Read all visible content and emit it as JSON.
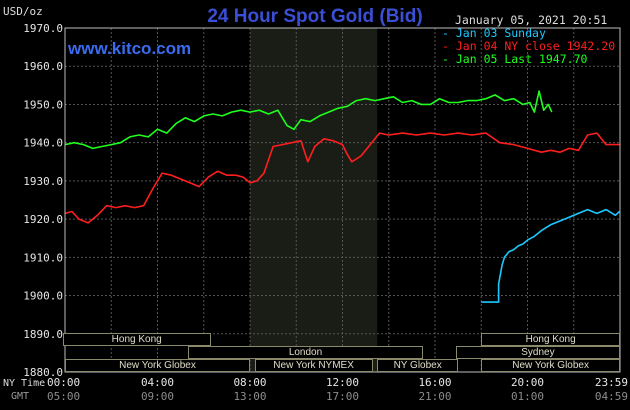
{
  "header": {
    "title": "24 Hour Spot Gold (Bid)",
    "units": "USD/oz",
    "datetime": "January 05, 2021 20:51",
    "website": "www.kitco.com"
  },
  "legend": [
    {
      "label": "Jan 03 Sunday",
      "color": "#1ec8ff"
    },
    {
      "label": "Jan 04 NY close 1942.20",
      "color": "#ff1e1e"
    },
    {
      "label": "Jan 05 Last 1947.70",
      "color": "#1eff1e"
    }
  ],
  "timezones": {
    "ny_label": "NY Time",
    "gmt_label": "GMT"
  },
  "markets": [
    {
      "name": "Hong Kong",
      "start": -0.1,
      "end": 6.3
    },
    {
      "name": "London",
      "start": 5.3,
      "end": 15.5
    },
    {
      "name": "New York Globex",
      "start": 0.0,
      "end": 8.0
    },
    {
      "name": "New York NYMEX",
      "start": 8.2,
      "end": 13.3
    },
    {
      "name": "NY Globex",
      "start": 13.5,
      "end": 17.0
    },
    {
      "name": "Hong Kong",
      "start": 18.0,
      "end": 24.0
    },
    {
      "name": "Sydney",
      "start": 16.9,
      "end": 24.0
    },
    {
      "name": "New York Globex",
      "start": 18.0,
      "end": 24.0
    }
  ],
  "chart_data": {
    "type": "line",
    "title": "24 Hour Spot Gold (Bid)",
    "ylabel": "USD/oz",
    "xlim": [
      0,
      24
    ],
    "ylim": [
      1880,
      1970
    ],
    "grid": true,
    "legend_position": "top-right",
    "shaded_region": [
      8.0,
      13.5
    ],
    "y_ticks": [
      "1880.0",
      "1890.0",
      "1900.0",
      "1910.0",
      "1920.0",
      "1930.0",
      "1940.0",
      "1950.0",
      "1960.0",
      "1970.0"
    ],
    "x_ticks_ny": [
      "00:00",
      "04:00",
      "08:00",
      "12:00",
      "16:00",
      "20:00",
      "23:59"
    ],
    "x_ticks_gmt": [
      "05:00",
      "09:00",
      "13:00",
      "17:00",
      "21:00",
      "01:00",
      "04:59"
    ],
    "series": [
      {
        "name": "Jan 03 Sunday",
        "color": "#1ec8ff",
        "x": [
          18.0,
          18.75,
          18.75,
          18.9,
          19.0,
          19.2,
          19.4,
          19.6,
          19.8,
          20.0,
          20.3,
          20.6,
          21.0,
          21.4,
          21.8,
          22.2,
          22.6,
          23.0,
          23.4,
          23.8,
          23.98
        ],
        "y": [
          1898.3,
          1898.3,
          1903.0,
          1908.0,
          1910.0,
          1911.5,
          1912.0,
          1913.0,
          1913.5,
          1914.5,
          1915.5,
          1917.0,
          1918.5,
          1919.5,
          1920.5,
          1921.5,
          1922.5,
          1921.5,
          1922.5,
          1921.0,
          1922.0
        ]
      },
      {
        "name": "Jan 04 NY close",
        "color": "#ff1e1e",
        "x": [
          0.0,
          0.3,
          0.6,
          1.0,
          1.4,
          1.8,
          2.2,
          2.6,
          3.0,
          3.4,
          3.8,
          4.2,
          4.6,
          5.0,
          5.4,
          5.8,
          6.2,
          6.6,
          7.0,
          7.4,
          7.7,
          8.0,
          8.3,
          8.6,
          9.0,
          9.4,
          9.8,
          10.2,
          10.5,
          10.8,
          11.2,
          11.6,
          12.0,
          12.2,
          12.4,
          12.8,
          13.2,
          13.6,
          14.0,
          14.6,
          15.2,
          15.8,
          16.4,
          17.0,
          17.6,
          18.2,
          18.8,
          19.4,
          20.0,
          20.6,
          21.0,
          21.4,
          21.8,
          22.2,
          22.6,
          23.0,
          23.4,
          23.98
        ],
        "y": [
          1921.5,
          1922.0,
          1920.0,
          1919.0,
          1921.0,
          1923.5,
          1923.0,
          1923.5,
          1923.0,
          1923.5,
          1928.0,
          1932.0,
          1931.5,
          1930.5,
          1929.5,
          1928.5,
          1931.0,
          1932.5,
          1931.5,
          1931.5,
          1931.0,
          1929.5,
          1930.0,
          1932.0,
          1939.0,
          1939.5,
          1940.0,
          1940.5,
          1935.0,
          1939.0,
          1941.0,
          1940.5,
          1939.5,
          1937.0,
          1935.0,
          1936.5,
          1939.5,
          1942.5,
          1942.0,
          1942.5,
          1942.0,
          1942.5,
          1942.0,
          1942.5,
          1942.0,
          1942.5,
          1940.0,
          1939.5,
          1938.5,
          1937.5,
          1938.0,
          1937.5,
          1938.5,
          1938.0,
          1942.0,
          1942.5,
          1939.5,
          1939.5
        ]
      },
      {
        "name": "Jan 05 Last",
        "color": "#1eff1e",
        "x": [
          0.0,
          0.4,
          0.8,
          1.2,
          1.6,
          2.0,
          2.4,
          2.8,
          3.2,
          3.6,
          4.0,
          4.4,
          4.8,
          5.2,
          5.6,
          6.0,
          6.4,
          6.8,
          7.2,
          7.6,
          8.0,
          8.4,
          8.8,
          9.2,
          9.6,
          9.9,
          10.2,
          10.6,
          11.0,
          11.4,
          11.8,
          12.2,
          12.6,
          13.0,
          13.4,
          13.8,
          14.2,
          14.6,
          15.0,
          15.4,
          15.8,
          16.2,
          16.6,
          17.0,
          17.4,
          17.8,
          18.2,
          18.6,
          19.0,
          19.4,
          19.8,
          20.1,
          20.3,
          20.5,
          20.7,
          20.9,
          21.05
        ],
        "y": [
          1939.5,
          1940.0,
          1939.5,
          1938.5,
          1939.0,
          1939.5,
          1940.0,
          1941.5,
          1942.0,
          1941.5,
          1943.5,
          1942.5,
          1945.0,
          1946.5,
          1945.5,
          1947.0,
          1947.5,
          1947.0,
          1948.0,
          1948.5,
          1948.0,
          1948.5,
          1947.5,
          1948.5,
          1944.5,
          1943.5,
          1946.0,
          1945.5,
          1947.0,
          1948.0,
          1949.0,
          1949.5,
          1951.0,
          1951.5,
          1951.0,
          1951.5,
          1952.0,
          1950.5,
          1951.0,
          1950.0,
          1950.0,
          1951.5,
          1950.5,
          1950.5,
          1951.0,
          1951.0,
          1951.5,
          1952.5,
          1951.0,
          1951.5,
          1950.0,
          1950.5,
          1948.0,
          1953.5,
          1948.5,
          1950.0,
          1948.0
        ]
      }
    ]
  }
}
